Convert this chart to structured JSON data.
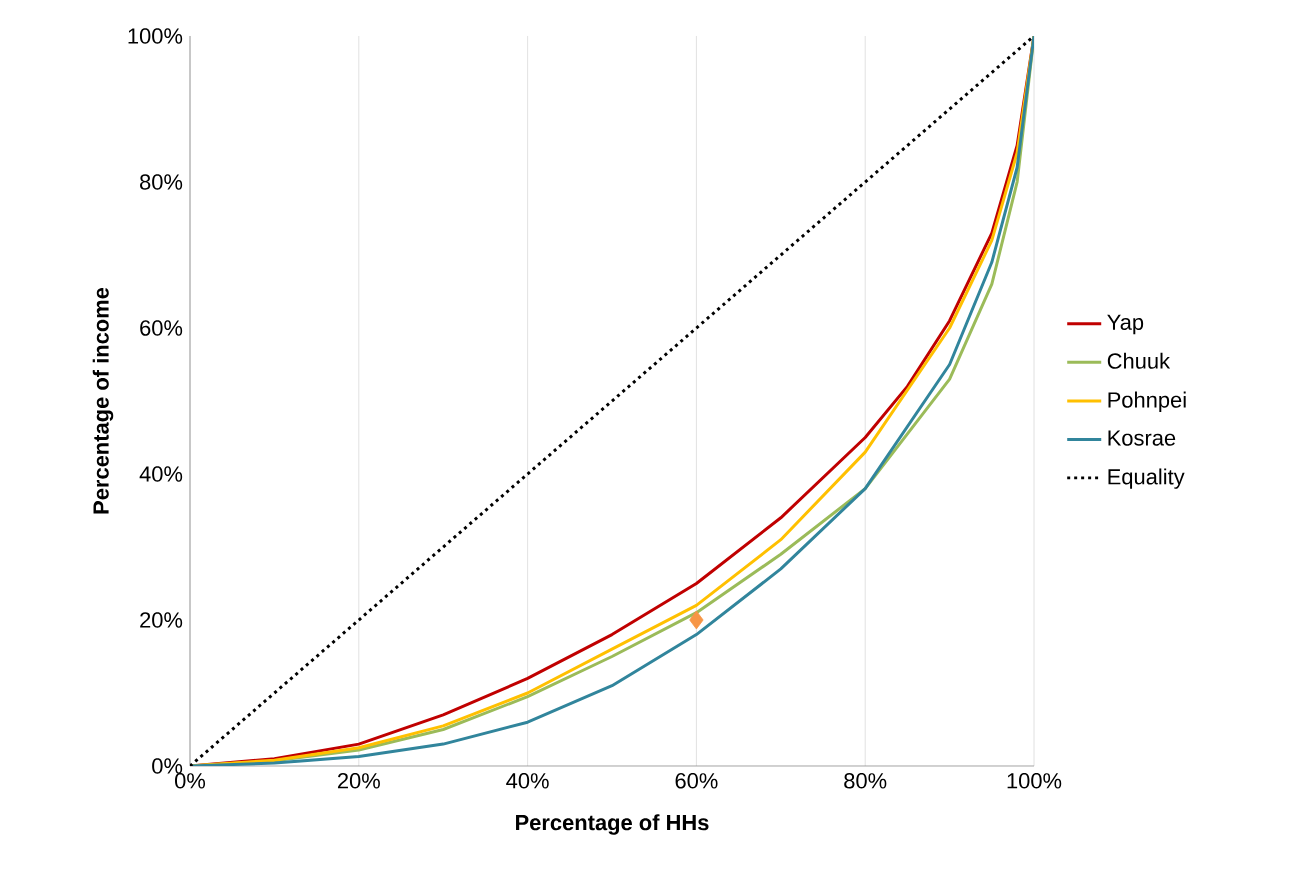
{
  "chart_data": {
    "type": "line",
    "xlabel": "Percentage of HHs",
    "ylabel": "Percentage of income",
    "xlim": [
      0,
      100
    ],
    "ylim": [
      0,
      100
    ],
    "xticks": [
      {
        "value": 0,
        "label": "0%"
      },
      {
        "value": 20,
        "label": "20%"
      },
      {
        "value": 40,
        "label": "40%"
      },
      {
        "value": 60,
        "label": "60%"
      },
      {
        "value": 80,
        "label": "80%"
      },
      {
        "value": 100,
        "label": "100%"
      }
    ],
    "yticks": [
      {
        "value": 0,
        "label": "0%"
      },
      {
        "value": 20,
        "label": "20%"
      },
      {
        "value": 40,
        "label": "40%"
      },
      {
        "value": 60,
        "label": "60%"
      },
      {
        "value": 80,
        "label": "80%"
      },
      {
        "value": 100,
        "label": "100%"
      }
    ],
    "grid": "x",
    "legend": "right",
    "marker": "none",
    "series": [
      {
        "name": "Yap",
        "color": "#c00000",
        "x": [
          0,
          10,
          20,
          30,
          40,
          50,
          60,
          70,
          80,
          85,
          90,
          95,
          98,
          100
        ],
        "values": [
          0,
          1,
          3,
          7,
          12,
          18,
          25,
          34,
          45,
          52,
          61,
          73,
          85,
          100
        ]
      },
      {
        "name": "Chuuk",
        "color": "#9bbb59",
        "x": [
          0,
          10,
          20,
          30,
          40,
          50,
          60,
          70,
          80,
          90,
          95,
          98,
          100
        ],
        "values": [
          0,
          0.7,
          2.2,
          5,
          9.5,
          15,
          21,
          29,
          38,
          53,
          66,
          80,
          100
        ]
      },
      {
        "name": "Pohnpei",
        "color": "#ffc000",
        "x": [
          0,
          10,
          20,
          30,
          40,
          50,
          60,
          70,
          80,
          90,
          95,
          98,
          100
        ],
        "values": [
          0,
          0.8,
          2.5,
          5.5,
          10,
          16,
          22,
          31,
          43,
          60,
          72,
          84,
          100
        ]
      },
      {
        "name": "Kosrae",
        "color": "#31859c",
        "x": [
          0,
          10,
          20,
          30,
          40,
          50,
          60,
          70,
          80,
          90,
          95,
          98,
          100
        ],
        "values": [
          0,
          0.4,
          1.3,
          3,
          6,
          11,
          18,
          27,
          38,
          55,
          69,
          82,
          100
        ]
      },
      {
        "name": "Equality",
        "color": "#000000",
        "line_style": "dotted",
        "x": [
          0,
          100
        ],
        "values": [
          0,
          100
        ]
      },
      {
        "type": "scatter",
        "marker": "diamond",
        "color": "#f79646",
        "x": [
          60
        ],
        "values": [
          20
        ]
      }
    ]
  }
}
